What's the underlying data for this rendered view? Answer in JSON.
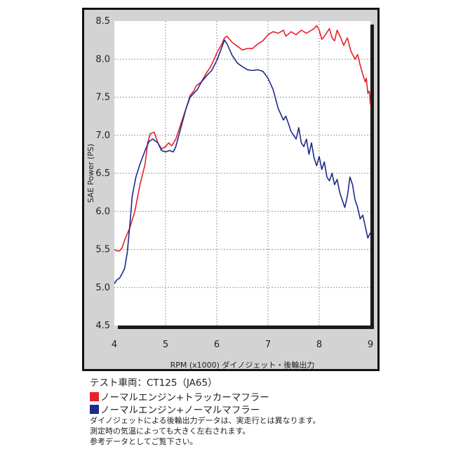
{
  "chart_data": {
    "type": "line",
    "xlabel": "RPM (x1000) ダイノジェット・後輪出力",
    "ylabel": "SAE Power (PS)",
    "xlim": [
      4,
      9
    ],
    "ylim": [
      4.5,
      8.5
    ],
    "x_ticks": [
      "4",
      "5",
      "6",
      "7",
      "8",
      "9"
    ],
    "y_ticks": [
      "4.5",
      "5.0",
      "5.5",
      "6.0",
      "6.5",
      "7.0",
      "7.5",
      "8.0",
      "8.5"
    ],
    "grid": true,
    "series": [
      {
        "name": "ノーマルエンジン+トラッカーマフラー",
        "color": "#e8202a",
        "points": [
          [
            4.0,
            5.5
          ],
          [
            4.05,
            5.48
          ],
          [
            4.1,
            5.48
          ],
          [
            4.15,
            5.52
          ],
          [
            4.2,
            5.62
          ],
          [
            4.3,
            5.78
          ],
          [
            4.4,
            6.0
          ],
          [
            4.5,
            6.35
          ],
          [
            4.6,
            6.62
          ],
          [
            4.65,
            6.9
          ],
          [
            4.7,
            7.02
          ],
          [
            4.78,
            7.04
          ],
          [
            4.85,
            6.9
          ],
          [
            4.92,
            6.82
          ],
          [
            5.0,
            6.85
          ],
          [
            5.06,
            6.9
          ],
          [
            5.12,
            6.86
          ],
          [
            5.2,
            6.95
          ],
          [
            5.3,
            7.15
          ],
          [
            5.4,
            7.35
          ],
          [
            5.48,
            7.52
          ],
          [
            5.55,
            7.58
          ],
          [
            5.6,
            7.65
          ],
          [
            5.7,
            7.7
          ],
          [
            5.8,
            7.82
          ],
          [
            5.88,
            7.9
          ],
          [
            5.95,
            8.0
          ],
          [
            6.0,
            8.08
          ],
          [
            6.1,
            8.2
          ],
          [
            6.15,
            8.28
          ],
          [
            6.2,
            8.3
          ],
          [
            6.3,
            8.22
          ],
          [
            6.4,
            8.17
          ],
          [
            6.5,
            8.12
          ],
          [
            6.6,
            8.14
          ],
          [
            6.7,
            8.14
          ],
          [
            6.8,
            8.2
          ],
          [
            6.9,
            8.24
          ],
          [
            7.0,
            8.32
          ],
          [
            7.1,
            8.36
          ],
          [
            7.2,
            8.34
          ],
          [
            7.3,
            8.38
          ],
          [
            7.35,
            8.3
          ],
          [
            7.45,
            8.36
          ],
          [
            7.55,
            8.32
          ],
          [
            7.65,
            8.38
          ],
          [
            7.75,
            8.34
          ],
          [
            7.85,
            8.38
          ],
          [
            7.9,
            8.4
          ],
          [
            7.95,
            8.44
          ],
          [
            8.0,
            8.38
          ],
          [
            8.05,
            8.26
          ],
          [
            8.1,
            8.3
          ],
          [
            8.2,
            8.4
          ],
          [
            8.25,
            8.28
          ],
          [
            8.3,
            8.24
          ],
          [
            8.35,
            8.38
          ],
          [
            8.42,
            8.28
          ],
          [
            8.48,
            8.18
          ],
          [
            8.55,
            8.28
          ],
          [
            8.62,
            8.1
          ],
          [
            8.7,
            8.0
          ],
          [
            8.75,
            8.06
          ],
          [
            8.8,
            7.92
          ],
          [
            8.85,
            7.8
          ],
          [
            8.9,
            7.7
          ],
          [
            8.92,
            7.75
          ],
          [
            8.95,
            7.55
          ],
          [
            8.98,
            7.58
          ],
          [
            9.0,
            7.4
          ]
        ]
      },
      {
        "name": "ノーマルエンジン+ノーマルマフラー",
        "color": "#1c2a8c",
        "points": [
          [
            4.0,
            5.05
          ],
          [
            4.05,
            5.1
          ],
          [
            4.1,
            5.12
          ],
          [
            4.15,
            5.18
          ],
          [
            4.2,
            5.25
          ],
          [
            4.25,
            5.45
          ],
          [
            4.3,
            5.8
          ],
          [
            4.35,
            6.2
          ],
          [
            4.42,
            6.45
          ],
          [
            4.5,
            6.62
          ],
          [
            4.6,
            6.8
          ],
          [
            4.68,
            6.92
          ],
          [
            4.75,
            6.95
          ],
          [
            4.85,
            6.9
          ],
          [
            4.92,
            6.8
          ],
          [
            5.0,
            6.78
          ],
          [
            5.08,
            6.8
          ],
          [
            5.15,
            6.78
          ],
          [
            5.2,
            6.85
          ],
          [
            5.3,
            7.1
          ],
          [
            5.4,
            7.35
          ],
          [
            5.48,
            7.5
          ],
          [
            5.55,
            7.55
          ],
          [
            5.62,
            7.6
          ],
          [
            5.7,
            7.7
          ],
          [
            5.8,
            7.78
          ],
          [
            5.9,
            7.85
          ],
          [
            6.0,
            7.98
          ],
          [
            6.08,
            8.12
          ],
          [
            6.15,
            8.25
          ],
          [
            6.2,
            8.2
          ],
          [
            6.3,
            8.05
          ],
          [
            6.4,
            7.95
          ],
          [
            6.5,
            7.9
          ],
          [
            6.6,
            7.86
          ],
          [
            6.7,
            7.85
          ],
          [
            6.8,
            7.86
          ],
          [
            6.9,
            7.84
          ],
          [
            7.0,
            7.75
          ],
          [
            7.1,
            7.6
          ],
          [
            7.2,
            7.35
          ],
          [
            7.3,
            7.2
          ],
          [
            7.35,
            7.25
          ],
          [
            7.45,
            7.05
          ],
          [
            7.55,
            6.95
          ],
          [
            7.6,
            7.1
          ],
          [
            7.65,
            6.9
          ],
          [
            7.7,
            6.85
          ],
          [
            7.75,
            6.95
          ],
          [
            7.8,
            6.75
          ],
          [
            7.85,
            6.9
          ],
          [
            7.9,
            6.7
          ],
          [
            7.95,
            6.6
          ],
          [
            8.0,
            6.72
          ],
          [
            8.05,
            6.55
          ],
          [
            8.1,
            6.65
          ],
          [
            8.15,
            6.45
          ],
          [
            8.2,
            6.4
          ],
          [
            8.25,
            6.5
          ],
          [
            8.3,
            6.35
          ],
          [
            8.35,
            6.42
          ],
          [
            8.4,
            6.25
          ],
          [
            8.45,
            6.15
          ],
          [
            8.5,
            6.05
          ],
          [
            8.55,
            6.2
          ],
          [
            8.6,
            6.45
          ],
          [
            8.65,
            6.35
          ],
          [
            8.7,
            6.15
          ],
          [
            8.75,
            6.05
          ],
          [
            8.8,
            5.9
          ],
          [
            8.85,
            5.95
          ],
          [
            8.9,
            5.8
          ],
          [
            8.95,
            5.65
          ],
          [
            9.0,
            5.72
          ]
        ]
      }
    ]
  },
  "caption": {
    "title": "テスト車両：CT125（JA65）",
    "legend": [
      {
        "label": "ノーマルエンジン+トラッカーマフラー",
        "color": "#e8202a"
      },
      {
        "label": "ノーマルエンジン+ノーマルマフラー",
        "color": "#1c2a8c"
      }
    ],
    "notes": [
      "ダイノジェットによる後輪出力データは、実走行とは異なります。",
      "測定時の気温によっても大きく左右されます。",
      "参考データとしてご覧下さい。"
    ]
  }
}
